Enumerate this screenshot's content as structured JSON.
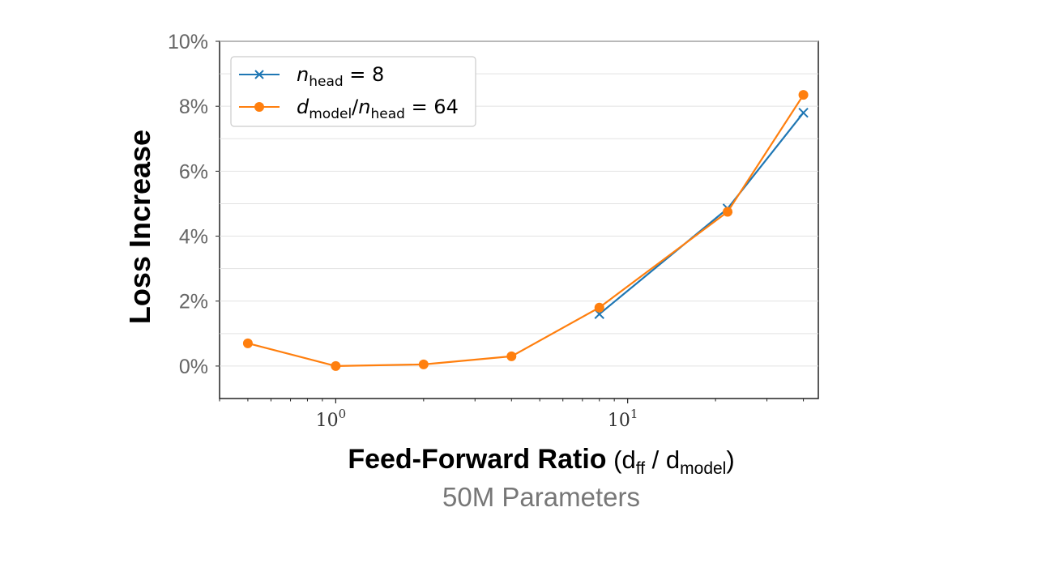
{
  "chart_data": {
    "type": "line",
    "x_scale": "log",
    "x": [
      0.5,
      1,
      2,
      4,
      8,
      22,
      40
    ],
    "xlim": [
      0.4,
      45
    ],
    "ylim": [
      -1,
      10
    ],
    "yticks": [
      0,
      2,
      4,
      6,
      8,
      10
    ],
    "ytick_labels": [
      "0%",
      "2%",
      "4%",
      "6%",
      "8%",
      "10%"
    ],
    "xticks": [
      1,
      10
    ],
    "xtick_labels": [
      {
        "base": "10",
        "exp": "0"
      },
      {
        "base": "10",
        "exp": "1"
      }
    ],
    "grid": true,
    "legend_position": "top-left",
    "ylabel": "Loss Increase",
    "xlabel": {
      "bold": "Feed-Forward Ratio",
      "open": " (d",
      "sub1": "ff",
      "mid": " / d",
      "sub2": "model",
      "close": ")"
    },
    "subtitle": "50M Parameters",
    "series": [
      {
        "name": "n_head = 8",
        "legend": {
          "var": "n",
          "sub": "head",
          "rest": " = 8"
        },
        "color": "#1f77b4",
        "marker": "x",
        "points": [
          {
            "x": 8,
            "y": 1.6
          },
          {
            "x": 22,
            "y": 4.85
          },
          {
            "x": 40,
            "y": 7.8
          }
        ]
      },
      {
        "name": "d_model/n_head = 64",
        "legend": {
          "var": "d",
          "sub": "model",
          "slash": "/",
          "var2": "n",
          "sub2": "head",
          "rest": " = 64"
        },
        "color": "#ff7f0e",
        "marker": "o",
        "points": [
          {
            "x": 0.5,
            "y": 0.7
          },
          {
            "x": 1,
            "y": 0.0
          },
          {
            "x": 2,
            "y": 0.05
          },
          {
            "x": 4,
            "y": 0.3
          },
          {
            "x": 8,
            "y": 1.8
          },
          {
            "x": 22,
            "y": 4.75
          },
          {
            "x": 40,
            "y": 8.35
          }
        ]
      }
    ]
  }
}
